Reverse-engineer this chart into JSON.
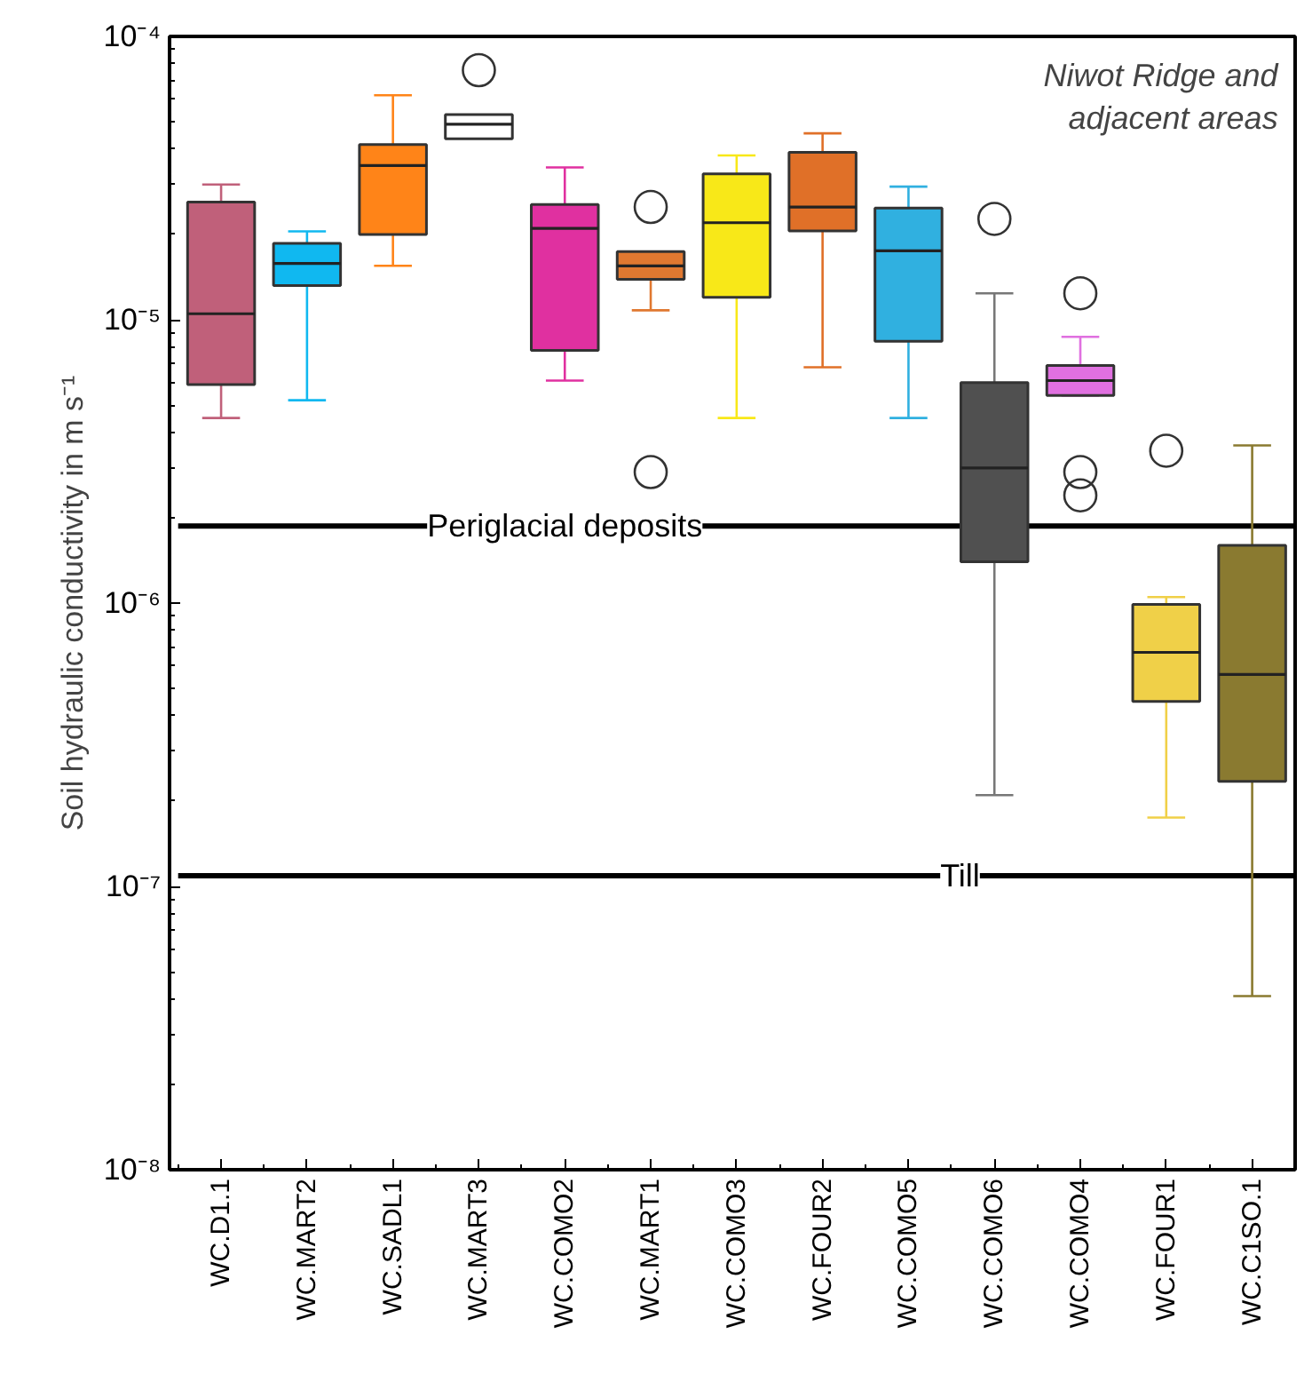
{
  "chart_data": {
    "type": "box",
    "ylabel": "Soil hydraulic conductivity in m s⁻¹",
    "categories": [
      "WC.D1.1",
      "WC.MART2",
      "WC.SADL1",
      "WC.MART3",
      "WC.COMO2",
      "WC.MART1",
      "WC.COMO3",
      "WC.FOUR2",
      "WC.COMO5",
      "WC.COMO6",
      "WC.COMO4",
      "WC.FOUR1",
      "WC.C1SO.1"
    ],
    "colors": [
      "#c0607a",
      "#10b8f0",
      "#ff8418",
      "#ffffff",
      "#e030a0",
      "#e07830",
      "#f8e818",
      "#e07028",
      "#30b0e0",
      "#505050",
      "#e070e0",
      "#f0d048",
      "#8a7a30"
    ],
    "boxes": [
      {
        "low": 4.5e-06,
        "q1": 5.9e-06,
        "median": 1.05e-05,
        "q3": 2.6e-05,
        "high": 3e-05
      },
      {
        "low": 5.2e-06,
        "q1": 1.32e-05,
        "median": 1.58e-05,
        "q3": 1.86e-05,
        "high": 2.05e-05
      },
      {
        "low": 1.55e-05,
        "q1": 2e-05,
        "median": 3.5e-05,
        "q3": 4.15e-05,
        "high": 6.2e-05
      },
      {
        "low": 3.55e-05,
        "q1": 4.35e-05,
        "median": 4.9e-05,
        "q3": 5.3e-05,
        "high": 5.3e-05,
        "outliers": [
          7.6e-05
        ]
      },
      {
        "low": 6.1e-06,
        "q1": 7.8e-06,
        "median": 2.1e-05,
        "q3": 2.55e-05,
        "high": 3.45e-05
      },
      {
        "low": 1.08e-05,
        "q1": 1.39e-05,
        "median": 1.55e-05,
        "q3": 1.74e-05,
        "high": 1.74e-05,
        "outliers": [
          2.5e-05,
          2.9e-06
        ]
      },
      {
        "low": 4.5e-06,
        "q1": 1.2e-05,
        "median": 2.2e-05,
        "q3": 3.27e-05,
        "high": 3.8e-05
      },
      {
        "low": 6.8e-06,
        "q1": 2.06e-05,
        "median": 2.5e-05,
        "q3": 3.9e-05,
        "high": 4.55e-05
      },
      {
        "low": 4.5e-06,
        "q1": 8.4e-06,
        "median": 1.75e-05,
        "q3": 2.48e-05,
        "high": 2.95e-05
      },
      {
        "low": 2.1e-07,
        "q1": 1.4e-06,
        "median": 3e-06,
        "q3": 6e-06,
        "high": 1.24e-05,
        "outliers": [
          2.27e-05
        ]
      },
      {
        "low": 5.4e-06,
        "q1": 5.4e-06,
        "median": 6.1e-06,
        "q3": 6.9e-06,
        "high": 8.7e-06,
        "outliers": [
          1.24e-05,
          2.9e-06,
          2.4e-06
        ]
      },
      {
        "low": 1.75e-07,
        "q1": 4.5e-07,
        "median": 6.7e-07,
        "q3": 9.9e-07,
        "high": 1.05e-06,
        "outliers": [
          3.45e-06
        ]
      },
      {
        "low": 4.1e-08,
        "q1": 2.35e-07,
        "median": 5.6e-07,
        "q3": 1.6e-06,
        "high": 3.6e-06
      }
    ],
    "log": "y",
    "ylim": [
      1e-08,
      0.0001
    ],
    "yticks": [
      {
        "value": 1e-08,
        "label": "10⁻⁸"
      },
      {
        "value": 1e-07,
        "label": "10⁻⁷"
      },
      {
        "value": 1e-06,
        "label": "10⁻⁶"
      },
      {
        "value": 1e-05,
        "label": "10⁻⁵"
      },
      {
        "value": 0.0001,
        "label": "10⁻⁴"
      }
    ],
    "ref_lines": [
      {
        "axis": "y",
        "value": 1.87e-06,
        "label": "Periglacial deposits",
        "color": "#000000"
      },
      {
        "axis": "y",
        "value": 1.09e-07,
        "label": "Till",
        "color": "#000000"
      }
    ],
    "annotations": [
      "Niwot Ridge and\nadjacent areas"
    ],
    "grid": false
  }
}
